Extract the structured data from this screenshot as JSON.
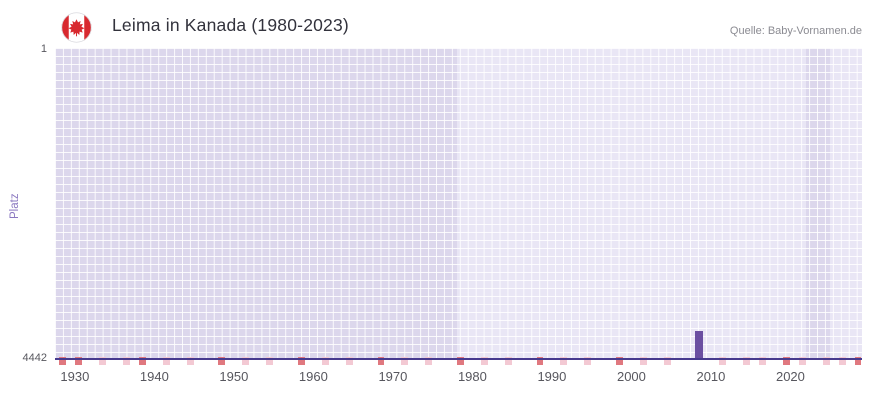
{
  "header": {
    "title": "Leima in Kanada (1980-2023)",
    "source": "Quelle: Baby-Vornamen.de",
    "flag": "canada-flag"
  },
  "chart_data": {
    "type": "bar",
    "title": "Leima in Kanada (1980-2023)",
    "xlabel": "",
    "ylabel": "Platz",
    "y_axis": {
      "min": 1,
      "max": 4442,
      "inverted": true,
      "tick_labels": [
        "1",
        "4442"
      ]
    },
    "x_axis": {
      "min": 1927.5,
      "max": 2029,
      "ticks": [
        1930,
        1940,
        1950,
        1960,
        1970,
        1980,
        1990,
        2000,
        2010,
        2020
      ]
    },
    "series": [
      {
        "name": "Platz",
        "points": [
          {
            "x": 2008,
            "y": 4030
          }
        ]
      }
    ],
    "background_bands": [
      {
        "from": 1927.5,
        "to": 1978,
        "shade": "dark"
      },
      {
        "from": 1978,
        "to": 2022,
        "shade": "light"
      },
      {
        "from": 2022,
        "to": 2025,
        "shade": "dark"
      },
      {
        "from": 2025,
        "to": 2029,
        "shade": "light"
      }
    ],
    "bottom_strip": [
      {
        "x": 1928,
        "level": "strong"
      },
      {
        "x": 1930,
        "level": "strong"
      },
      {
        "x": 1933,
        "level": "light"
      },
      {
        "x": 1936,
        "level": "light"
      },
      {
        "x": 1938,
        "level": "strong"
      },
      {
        "x": 1941,
        "level": "light"
      },
      {
        "x": 1944,
        "level": "light"
      },
      {
        "x": 1948,
        "level": "strong"
      },
      {
        "x": 1951,
        "level": "light"
      },
      {
        "x": 1954,
        "level": "light"
      },
      {
        "x": 1958,
        "level": "strong"
      },
      {
        "x": 1961,
        "level": "light"
      },
      {
        "x": 1964,
        "level": "light"
      },
      {
        "x": 1968,
        "level": "strong"
      },
      {
        "x": 1971,
        "level": "light"
      },
      {
        "x": 1974,
        "level": "light"
      },
      {
        "x": 1978,
        "level": "strong"
      },
      {
        "x": 1981,
        "level": "light"
      },
      {
        "x": 1984,
        "level": "light"
      },
      {
        "x": 1988,
        "level": "strong"
      },
      {
        "x": 1991,
        "level": "light"
      },
      {
        "x": 1994,
        "level": "light"
      },
      {
        "x": 1998,
        "level": "strong"
      },
      {
        "x": 2001,
        "level": "light"
      },
      {
        "x": 2004,
        "level": "light"
      },
      {
        "x": 2011,
        "level": "light"
      },
      {
        "x": 2014,
        "level": "light"
      },
      {
        "x": 2016,
        "level": "light"
      },
      {
        "x": 2019,
        "level": "strong"
      },
      {
        "x": 2021,
        "level": "light"
      },
      {
        "x": 2024,
        "level": "light"
      },
      {
        "x": 2026,
        "level": "light"
      },
      {
        "x": 2028,
        "level": "strong"
      }
    ],
    "colors": {
      "bar": "#6b4fa1",
      "baseline": "#473a8e",
      "plot_light": "#e9e6f5",
      "plot_dark": "#dcd7ec",
      "grid": "#ffffff",
      "strip_strong": "#e0787f",
      "strip_light": "#f3c9d3",
      "axis_text": "#57575e",
      "ylabel_text": "#8a77c0",
      "title_text": "#32323c",
      "source_text": "#8b8b92"
    }
  }
}
